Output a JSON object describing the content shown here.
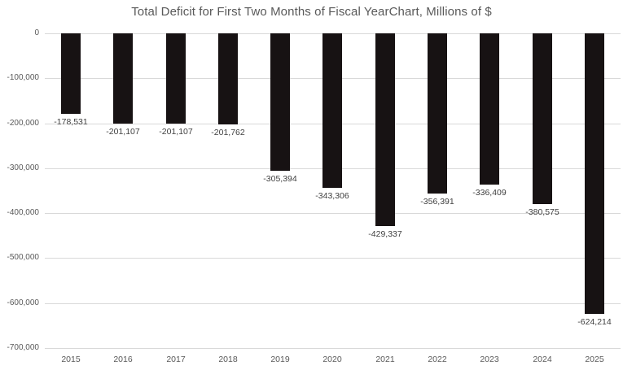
{
  "chart_data": {
    "type": "bar",
    "title": "Total Deficit for First Two Months of Fiscal YearChart, Millions of $",
    "categories": [
      "2015",
      "2016",
      "2017",
      "2018",
      "2019",
      "2020",
      "2021",
      "2022",
      "2023",
      "2024",
      "2025"
    ],
    "values": [
      -178531,
      -201107,
      -201107,
      -201762,
      -305394,
      -343306,
      -429337,
      -356391,
      -336409,
      -380575,
      -624214
    ],
    "data_labels": [
      "-178,531",
      "-201,107",
      "-201,107",
      "-201,762",
      "-305,394",
      "-343,306",
      "-429,337",
      "-356,391",
      "-336,409",
      "-380,575",
      "-624,214"
    ],
    "yticks": [
      0,
      -100000,
      -200000,
      -300000,
      -400000,
      -500000,
      -600000,
      -700000
    ],
    "ytick_labels": [
      "0",
      "-100,000",
      "-200,000",
      "-300,000",
      "-400,000",
      "-500,000",
      "-600,000",
      "-700,000"
    ],
    "ylim": [
      -700000,
      0
    ],
    "xlabel": "",
    "ylabel": "",
    "grid": "horizontal",
    "legend": "none",
    "bar_color": "#171213",
    "gridline_color": "#d9d9d9",
    "axis_text_color": "#595959",
    "data_label_color": "#404040",
    "title_color": "#595959",
    "background_color": "#ffffff"
  }
}
